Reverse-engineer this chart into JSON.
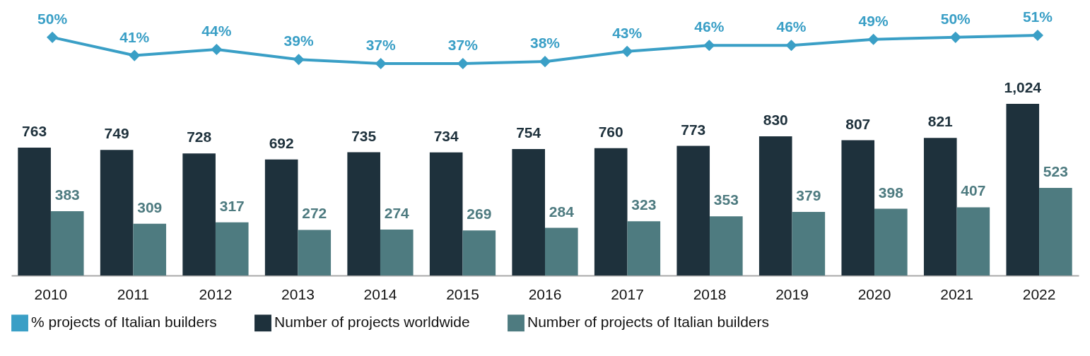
{
  "chart_data": [
    {
      "type": "line",
      "categories": [
        "2010",
        "2011",
        "2012",
        "2013",
        "2014",
        "2015",
        "2016",
        "2017",
        "2018",
        "2019",
        "2020",
        "2021",
        "2022"
      ],
      "series": [
        {
          "name": "% projects of Italian builders",
          "color": "#3a9fc6",
          "marker": "diamond",
          "values": [
            50,
            41,
            44,
            39,
            37,
            37,
            38,
            43,
            46,
            46,
            49,
            50,
            51
          ],
          "value_labels": [
            "50%",
            "41%",
            "44%",
            "39%",
            "37%",
            "37%",
            "38%",
            "43%",
            "46%",
            "46%",
            "49%",
            "50%",
            "51%"
          ]
        }
      ],
      "tick_labels": false,
      "legend": "bottom"
    },
    {
      "type": "bar",
      "categories": [
        "2010",
        "2011",
        "2012",
        "2013",
        "2014",
        "2015",
        "2016",
        "2017",
        "2018",
        "2019",
        "2020",
        "2021",
        "2022"
      ],
      "series": [
        {
          "name": "Number of projects worldwide",
          "color": "#1e313c",
          "values": [
            763,
            749,
            728,
            692,
            735,
            734,
            754,
            760,
            773,
            830,
            807,
            821,
            1024
          ],
          "value_labels": [
            "763",
            "749",
            "728",
            "692",
            "735",
            "734",
            "754",
            "760",
            "773",
            "830",
            "807",
            "821",
            "1,024"
          ]
        },
        {
          "name": "Number of projects of Italian builders",
          "color": "#4e7b80",
          "values": [
            383,
            309,
            317,
            272,
            274,
            269,
            284,
            323,
            353,
            379,
            398,
            407,
            523
          ],
          "value_labels": [
            "383",
            "309",
            "317",
            "272",
            "274",
            "269",
            "284",
            "323",
            "353",
            "379",
            "398",
            "407",
            "523"
          ]
        }
      ],
      "tick_labels": "x",
      "legend": "bottom"
    }
  ]
}
